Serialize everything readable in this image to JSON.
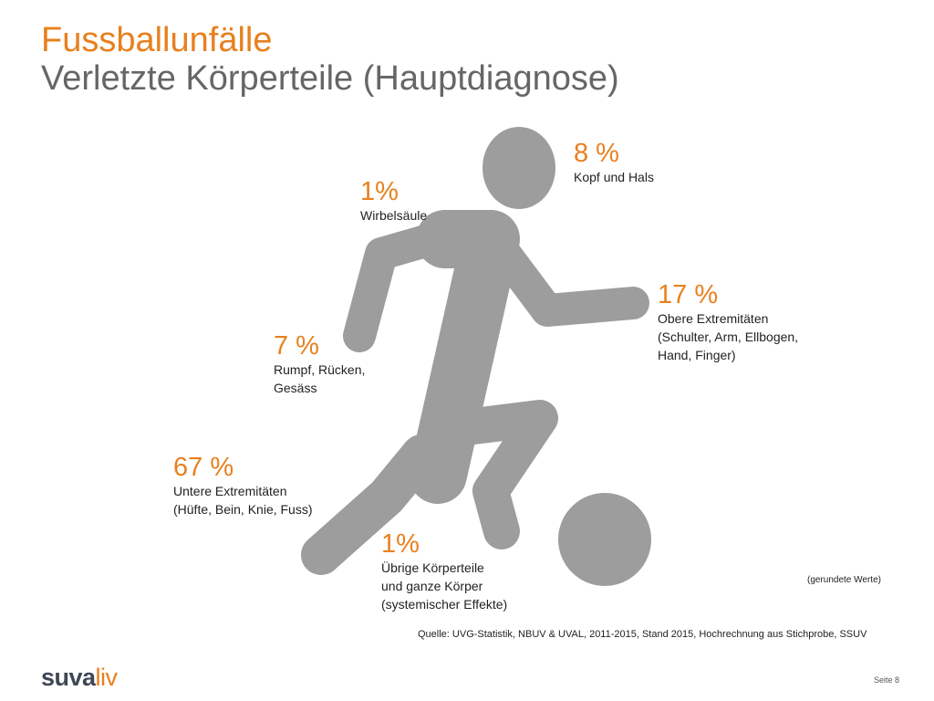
{
  "header": {
    "title": "Fussballunfälle",
    "subtitle": "Verletzte Körperteile (Hauptdiagnose)"
  },
  "colors": {
    "accent": "#e8801e",
    "figure": "#9d9d9d",
    "subtitle": "#666666",
    "logo_dark": "#3e4756"
  },
  "figure": {
    "icon": "soccer-player-kicking-ball-icon"
  },
  "chart_data": {
    "type": "table",
    "categories": [
      "Kopf und Hals",
      "Wirbelsäule",
      "Obere Extremitäten (Schulter, Arm, Ellbogen, Hand, Finger)",
      "Rumpf, Rücken, Gesäss",
      "Untere Extremitäten (Hüfte, Bein, Knie, Fuss)",
      "Übrige Körperteile und ganze Körper (systemischer Effekte)"
    ],
    "values": [
      8,
      1,
      17,
      7,
      67,
      1
    ],
    "unit": "%"
  },
  "stats": [
    {
      "pct": "8 %",
      "lines": [
        "Kopf und Hals"
      ]
    },
    {
      "pct": "1%",
      "lines": [
        "Wirbelsäule"
      ]
    },
    {
      "pct": "17 %",
      "lines": [
        "Obere Extremitäten",
        "(Schulter, Arm, Ellbogen,",
        "Hand, Finger)"
      ]
    },
    {
      "pct": "7 %",
      "lines": [
        "Rumpf, Rücken,",
        "Gesäss"
      ]
    },
    {
      "pct": "67 %",
      "lines": [
        "Untere Extremitäten",
        "(Hüfte, Bein, Knie, Fuss)"
      ]
    },
    {
      "pct": "1%",
      "lines": [
        "Übrige Körperteile",
        "und ganze Körper",
        "(systemischer Effekte)"
      ]
    }
  ],
  "footer": {
    "rounded_note": "(gerundete Werte)",
    "source": "Quelle: UVG-Statistik, NBUV  & UVAL, 2011-2015, Stand 2015, Hochrechnung aus Stichprobe, SSUV",
    "logo_part1": "suva",
    "logo_part2": "liv",
    "page": "Seite 8"
  }
}
